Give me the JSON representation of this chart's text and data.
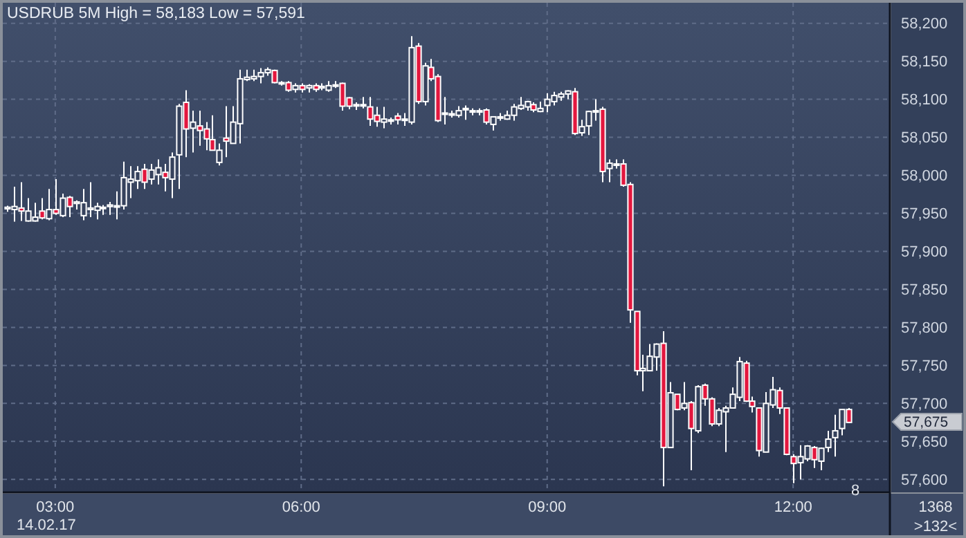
{
  "chart_data": {
    "type": "candlestick",
    "title": "USDRUB 5M High = 58,183 Low = 57,591",
    "x": [
      2.4167,
      2.5,
      2.5833,
      2.6667,
      2.75,
      2.8333,
      2.9167,
      3,
      3.0833,
      3.1667,
      3.25,
      3.3333,
      3.4167,
      3.5,
      3.5833,
      3.6667,
      3.75,
      3.8333,
      3.9167,
      4,
      4.0833,
      4.1667,
      4.25,
      4.3333,
      4.4167,
      4.5,
      4.5833,
      4.6667,
      4.75,
      4.8333,
      4.9167,
      5,
      5.0833,
      5.1667,
      5.25,
      5.3333,
      5.4167,
      5.5,
      5.5833,
      5.6667,
      5.75,
      5.8333,
      5.9167,
      6,
      6.0833,
      6.1667,
      6.25,
      6.3333,
      6.4167,
      6.5,
      6.5833,
      6.6667,
      6.75,
      6.8333,
      6.9167,
      7,
      7.0833,
      7.1667,
      7.25,
      7.3333,
      7.4167,
      7.5,
      7.5833,
      7.6667,
      7.75,
      7.8333,
      7.9167,
      8,
      8.0833,
      8.1667,
      8.25,
      8.3333,
      8.4167,
      8.5,
      8.5833,
      8.6667,
      8.75,
      8.8333,
      8.9167,
      9,
      9.0833,
      9.1667,
      9.25,
      9.3333,
      9.4167,
      9.5,
      9.5833,
      9.6667,
      9.75,
      9.8333,
      9.9167,
      10,
      10.0833,
      10.1667,
      10.25,
      10.3333,
      10.4167,
      10.5,
      10.5833,
      10.6667,
      10.75,
      10.8333,
      10.9167,
      11,
      11.0833,
      11.1667,
      11.25,
      11.3333,
      11.4167,
      11.5,
      11.5833,
      11.6667,
      11.75,
      11.8333,
      11.9167,
      12,
      12.0833,
      12.1667,
      12.25,
      12.3333,
      12.4167,
      12.5,
      12.5833,
      12.6667
    ],
    "ohlc": [
      [
        57956,
        57960,
        57952,
        57958
      ],
      [
        57955,
        57985,
        57939,
        57959
      ],
      [
        57957,
        57991,
        57940,
        57953
      ],
      [
        57940,
        57970,
        57939,
        57953
      ],
      [
        57940,
        57964,
        57939,
        57945
      ],
      [
        57953,
        57970,
        57942,
        57944
      ],
      [
        57943,
        57982,
        57941,
        57955
      ],
      [
        57955,
        57995,
        57948,
        57950
      ],
      [
        57947,
        57976,
        57945,
        57970
      ],
      [
        57971,
        57973,
        57945,
        57959
      ],
      [
        57963,
        57967,
        57955,
        57965
      ],
      [
        57947,
        57982,
        57941,
        57964
      ],
      [
        57955,
        57991,
        57945,
        57957
      ],
      [
        57954,
        57964,
        57942,
        57959
      ],
      [
        57957,
        57961,
        57948,
        57958
      ],
      [
        57959,
        57965,
        57948,
        57961
      ],
      [
        57959,
        57979,
        57942,
        57960
      ],
      [
        57960,
        58018,
        57955,
        57997
      ],
      [
        57991,
        58012,
        57970,
        57995
      ],
      [
        57993,
        58012,
        57982,
        58005
      ],
      [
        58008,
        58015,
        57982,
        57991
      ],
      [
        57995,
        58015,
        57988,
        58007
      ],
      [
        58001,
        58021,
        57988,
        58010
      ],
      [
        58004,
        58015,
        57979,
        57997
      ],
      [
        57995,
        58030,
        57970,
        58024
      ],
      [
        58027,
        58094,
        57982,
        58091
      ],
      [
        58096,
        58112,
        58024,
        58061
      ],
      [
        58062,
        58085,
        58030,
        58070
      ],
      [
        58065,
        58085,
        58039,
        58059
      ],
      [
        58061,
        58070,
        58033,
        58048
      ],
      [
        58047,
        58079,
        58033,
        58033
      ],
      [
        58017,
        58042,
        58013,
        58033
      ],
      [
        58049,
        58091,
        58024,
        58045
      ],
      [
        58042,
        58091,
        58042,
        58070
      ],
      [
        58068,
        58139,
        58042,
        58127
      ],
      [
        58126,
        58139,
        58124,
        58129
      ],
      [
        58127,
        58139,
        58124,
        58130
      ],
      [
        58130,
        58141,
        58121,
        58135
      ],
      [
        58135,
        58142,
        58131,
        58139
      ],
      [
        58138,
        58139,
        58121,
        58122
      ],
      [
        58122,
        58124,
        58118,
        58122
      ],
      [
        58122,
        58124,
        58110,
        58112
      ],
      [
        58113,
        58121,
        58109,
        58118
      ],
      [
        58118,
        58121,
        58109,
        58113
      ],
      [
        58115,
        58120,
        58109,
        58118
      ],
      [
        58118,
        58121,
        58110,
        58113
      ],
      [
        58115,
        58121,
        58112,
        58117
      ],
      [
        58112,
        58124,
        58110,
        58118
      ],
      [
        58119,
        58124,
        58115,
        58119
      ],
      [
        58121,
        58122,
        58085,
        58091
      ],
      [
        58102,
        58103,
        58087,
        58091
      ],
      [
        58092,
        58096,
        58086,
        58093
      ],
      [
        58093,
        58103,
        58088,
        58092
      ],
      [
        58090,
        58103,
        58065,
        58074
      ],
      [
        58079,
        58090,
        58064,
        58071
      ],
      [
        58070,
        58090,
        58062,
        58074
      ],
      [
        58072,
        58076,
        58067,
        58073
      ],
      [
        58078,
        58082,
        58067,
        58073
      ],
      [
        58073,
        58082,
        58065,
        58074
      ],
      [
        58070,
        58183,
        58067,
        58168
      ],
      [
        58170,
        58174,
        58094,
        58097
      ],
      [
        58097,
        58148,
        58092,
        58144
      ],
      [
        58142,
        58153,
        58124,
        58127
      ],
      [
        58130,
        58133,
        58070,
        58072
      ],
      [
        58082,
        58103,
        58067,
        58082
      ],
      [
        58080,
        58085,
        58076,
        58081
      ],
      [
        58079,
        58091,
        58076,
        58085
      ],
      [
        58087,
        58092,
        58073,
        58088
      ],
      [
        58084,
        58088,
        58079,
        58085
      ],
      [
        58085,
        58088,
        58079,
        58084
      ],
      [
        58086,
        58088,
        58067,
        58070
      ],
      [
        58067,
        58077,
        58059,
        58077
      ],
      [
        58076,
        58082,
        58072,
        58077
      ],
      [
        58074,
        58085,
        58073,
        58079
      ],
      [
        58079,
        58094,
        58072,
        58090
      ],
      [
        58088,
        58103,
        58086,
        58092
      ],
      [
        58090,
        58098,
        58085,
        58097
      ],
      [
        58093,
        58096,
        58083,
        58086
      ],
      [
        58084,
        58097,
        58083,
        58088
      ],
      [
        58092,
        58108,
        58083,
        58100
      ],
      [
        58097,
        58110,
        58092,
        58105
      ],
      [
        58103,
        58110,
        58098,
        58107
      ],
      [
        58107,
        58112,
        58100,
        58111
      ],
      [
        58110,
        58115,
        58053,
        58055
      ],
      [
        58056,
        58073,
        58052,
        58064
      ],
      [
        58065,
        58085,
        58053,
        58084
      ],
      [
        58084,
        58100,
        58072,
        58085
      ],
      [
        58087,
        58090,
        57991,
        58005
      ],
      [
        58009,
        58021,
        57991,
        58016
      ],
      [
        58015,
        58021,
        58009,
        58015
      ],
      [
        58015,
        58021,
        57985,
        57987
      ],
      [
        57988,
        57991,
        57806,
        57823
      ],
      [
        57821,
        57821,
        57737,
        57743
      ],
      [
        57743,
        57764,
        57716,
        57746
      ],
      [
        57743,
        57778,
        57743,
        57762
      ],
      [
        57761,
        57779,
        57743,
        57778
      ],
      [
        57779,
        57795,
        57591,
        57642
      ],
      [
        57642,
        57728,
        57642,
        57714
      ],
      [
        57712,
        57712,
        57691,
        57692
      ],
      [
        57694,
        57728,
        57691,
        57700
      ],
      [
        57701,
        57703,
        57612,
        57667
      ],
      [
        57664,
        57724,
        57661,
        57722
      ],
      [
        57724,
        57726,
        57697,
        57706
      ],
      [
        57706,
        57708,
        57670,
        57673
      ],
      [
        57673,
        57694,
        57670,
        57691
      ],
      [
        57689,
        57697,
        57636,
        57694
      ],
      [
        57694,
        57721,
        57694,
        57712
      ],
      [
        57708,
        57761,
        57703,
        57755
      ],
      [
        57753,
        57756,
        57702,
        57703
      ],
      [
        57703,
        57709,
        57688,
        57696
      ],
      [
        57694,
        57694,
        57630,
        57638
      ],
      [
        57636,
        57715,
        57636,
        57700
      ],
      [
        57698,
        57735,
        57694,
        57718
      ],
      [
        57717,
        57721,
        57686,
        57694
      ],
      [
        57694,
        57694,
        57632,
        57633
      ],
      [
        57630,
        57633,
        57595,
        57621
      ],
      [
        57622,
        57645,
        57600,
        57630
      ],
      [
        57627,
        57645,
        57624,
        57644
      ],
      [
        57642,
        57644,
        57615,
        57626
      ],
      [
        57624,
        57642,
        57612,
        57641
      ],
      [
        57642,
        57664,
        57636,
        57653
      ],
      [
        57655,
        57685,
        57630,
        57664
      ],
      [
        57667,
        57692,
        57658,
        57692
      ],
      [
        57692,
        57694,
        57674,
        57675
      ]
    ],
    "xlim": [
      2.36,
      13.18
    ],
    "xticks": [
      {
        "value": 3,
        "label": "03:00"
      },
      {
        "value": 6,
        "label": "06:00"
      },
      {
        "value": 9,
        "label": "09:00"
      },
      {
        "value": 12,
        "label": "12:00"
      }
    ],
    "ylim": [
      57583,
      58227
    ],
    "yticks": [
      {
        "value": 57600,
        "label": "57,600"
      },
      {
        "value": 57650,
        "label": "57,650"
      },
      {
        "value": 57700,
        "label": "57,700"
      },
      {
        "value": 57750,
        "label": "57,750"
      },
      {
        "value": 57800,
        "label": "57,800"
      },
      {
        "value": 57850,
        "label": "57,850"
      },
      {
        "value": 57900,
        "label": "57,900"
      },
      {
        "value": 57950,
        "label": "57,950"
      },
      {
        "value": 58000,
        "label": "58,000"
      },
      {
        "value": 58050,
        "label": "58,050"
      },
      {
        "value": 58100,
        "label": "58,100"
      },
      {
        "value": 58150,
        "label": "58,150"
      },
      {
        "value": 58200,
        "label": "58,200"
      }
    ],
    "grid": true,
    "annotations": [
      "14.02.17",
      "8",
      "1368",
      ">132<",
      "57,675"
    ]
  }
}
